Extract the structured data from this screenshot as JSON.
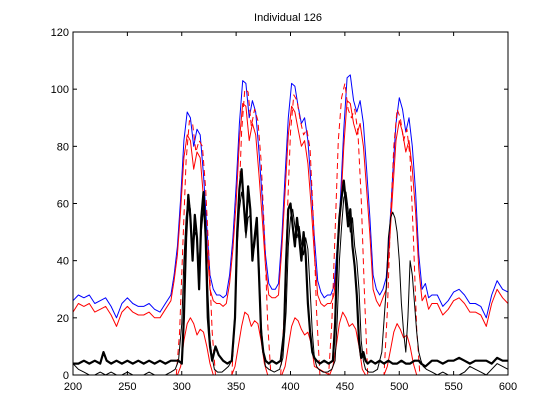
{
  "chart_data": {
    "type": "line",
    "title": "Individual 126",
    "xlabel": "",
    "ylabel": "",
    "xlim": [
      200,
      600
    ],
    "ylim": [
      0,
      120
    ],
    "xticks": [
      200,
      250,
      300,
      350,
      400,
      450,
      500,
      550,
      600
    ],
    "yticks": [
      0,
      20,
      40,
      60,
      80,
      100,
      120
    ],
    "grid": false,
    "legend": "none",
    "series": [
      {
        "color": "#0000ff",
        "style": "solid",
        "width": "thin",
        "x": [
          200,
          205,
          210,
          215,
          220,
          225,
          230,
          235,
          240,
          245,
          250,
          255,
          260,
          265,
          270,
          275,
          280,
          285,
          290,
          293,
          296,
          299,
          302,
          305,
          308,
          311,
          314,
          317,
          320,
          323,
          326,
          329,
          332,
          335,
          338,
          341,
          344,
          347,
          350,
          353,
          356,
          359,
          362,
          365,
          368,
          371,
          374,
          377,
          380,
          383,
          386,
          389,
          392,
          395,
          398,
          401,
          404,
          407,
          410,
          413,
          416,
          419,
          422,
          425,
          428,
          431,
          434,
          437,
          440,
          443,
          446,
          449,
          452,
          455,
          458,
          461,
          464,
          467,
          470,
          473,
          476,
          479,
          482,
          485,
          488,
          491,
          494,
          497,
          500,
          503,
          506,
          509,
          512,
          515,
          518,
          521,
          524,
          527,
          530,
          535,
          540,
          545,
          550,
          555,
          560,
          565,
          570,
          575,
          580,
          585,
          590,
          595,
          600
        ],
        "y": [
          26,
          28,
          27,
          28,
          25,
          26,
          27,
          24,
          20,
          25,
          27,
          25,
          24,
          24,
          25,
          23,
          22,
          25,
          28,
          35,
          45,
          62,
          82,
          92,
          90,
          80,
          86,
          84,
          70,
          52,
          35,
          30,
          28,
          28,
          27,
          28,
          35,
          48,
          66,
          88,
          103,
          102,
          90,
          96,
          92,
          78,
          62,
          42,
          32,
          30,
          30,
          32,
          48,
          70,
          90,
          102,
          101,
          94,
          88,
          90,
          82,
          66,
          48,
          33,
          29,
          27,
          28,
          28,
          31,
          45,
          62,
          86,
          104,
          105,
          96,
          92,
          96,
          88,
          72,
          55,
          35,
          30,
          28,
          30,
          34,
          50,
          70,
          88,
          97,
          93,
          85,
          90,
          80,
          64,
          42,
          30,
          32,
          27,
          28,
          28,
          24,
          26,
          29,
          30,
          28,
          25,
          25,
          24,
          20,
          28,
          33,
          30,
          29
        ]
      },
      {
        "color": "#ff0000",
        "style": "solid",
        "width": "thin",
        "x": [
          200,
          205,
          210,
          215,
          220,
          225,
          230,
          235,
          240,
          245,
          250,
          255,
          260,
          265,
          270,
          275,
          280,
          285,
          290,
          293,
          296,
          299,
          302,
          305,
          308,
          311,
          314,
          317,
          320,
          323,
          326,
          329,
          332,
          335,
          338,
          341,
          344,
          347,
          350,
          353,
          356,
          359,
          362,
          365,
          368,
          371,
          374,
          377,
          380,
          383,
          386,
          389,
          392,
          395,
          398,
          401,
          404,
          407,
          410,
          413,
          416,
          419,
          422,
          425,
          428,
          431,
          434,
          437,
          440,
          443,
          446,
          449,
          452,
          455,
          458,
          461,
          464,
          467,
          470,
          473,
          476,
          479,
          482,
          485,
          488,
          491,
          494,
          497,
          500,
          503,
          506,
          509,
          512,
          515,
          518,
          521,
          524,
          527,
          530,
          535,
          540,
          545,
          550,
          555,
          560,
          565,
          570,
          575,
          580,
          585,
          590,
          595,
          600
        ],
        "y": [
          22,
          25,
          24,
          25,
          22,
          23,
          24,
          21,
          17,
          22,
          24,
          22,
          21,
          21,
          22,
          20,
          20,
          23,
          26,
          33,
          42,
          58,
          76,
          84,
          82,
          72,
          78,
          76,
          62,
          46,
          30,
          26,
          25,
          25,
          24,
          25,
          32,
          44,
          60,
          82,
          95,
          94,
          82,
          88,
          84,
          70,
          55,
          38,
          28,
          27,
          27,
          28,
          44,
          64,
          84,
          94,
          92,
          86,
          80,
          82,
          74,
          59,
          42,
          28,
          25,
          24,
          25,
          25,
          28,
          41,
          57,
          80,
          96,
          95,
          88,
          84,
          88,
          80,
          65,
          49,
          30,
          26,
          24,
          27,
          30,
          46,
          64,
          82,
          89,
          85,
          78,
          82,
          72,
          57,
          37,
          26,
          28,
          23,
          25,
          25,
          21,
          23,
          26,
          27,
          25,
          22,
          22,
          21,
          17,
          25,
          30,
          27,
          25
        ]
      },
      {
        "color": "#ff0000",
        "style": "dashed",
        "width": "thin",
        "x": [
          295,
          298,
          301,
          304,
          307,
          310,
          313,
          316,
          319,
          322,
          325,
          328,
          331,
          346,
          349,
          352,
          355,
          358,
          361,
          364,
          367,
          370,
          373,
          376,
          379,
          382,
          391,
          394,
          397,
          400,
          403,
          406,
          409,
          412,
          415,
          418,
          421,
          424,
          427,
          435,
          438,
          441,
          444,
          447,
          450,
          453,
          456,
          459,
          462,
          465,
          468,
          471,
          474,
          477,
          480,
          486,
          489,
          492,
          495,
          498,
          501,
          504,
          507,
          510,
          513,
          516,
          519,
          522,
          525
        ],
        "y": [
          0,
          15,
          45,
          75,
          89,
          88,
          78,
          82,
          80,
          65,
          42,
          15,
          0,
          0,
          20,
          55,
          85,
          100,
          99,
          87,
          93,
          89,
          75,
          50,
          18,
          0,
          0,
          20,
          55,
          85,
          98,
          96,
          89,
          84,
          86,
          79,
          55,
          22,
          0,
          0,
          18,
          50,
          82,
          97,
          102,
          93,
          90,
          93,
          85,
          62,
          28,
          0,
          0,
          0,
          0,
          0,
          22,
          55,
          80,
          93,
          90,
          82,
          86,
          76,
          48,
          16,
          0,
          0,
          0
        ]
      },
      {
        "color": "#ff0000",
        "style": "solid",
        "width": "thin",
        "x": [
          296,
          299,
          302,
          305,
          308,
          311,
          314,
          317,
          320,
          323,
          326,
          329,
          332,
          346,
          349,
          352,
          355,
          358,
          361,
          364,
          367,
          370,
          373,
          376,
          379,
          392,
          395,
          398,
          401,
          404,
          407,
          410,
          413,
          416,
          419,
          422,
          436,
          439,
          442,
          445,
          448,
          451,
          454,
          457,
          460,
          463,
          466,
          469,
          472,
          486,
          489,
          492,
          495,
          498,
          501,
          504,
          507,
          510,
          513,
          516,
          519
        ],
        "y": [
          0,
          3,
          12,
          18,
          20,
          18,
          14,
          16,
          15,
          10,
          4,
          0,
          0,
          0,
          3,
          10,
          17,
          22,
          21,
          17,
          19,
          18,
          12,
          4,
          0,
          0,
          3,
          10,
          17,
          20,
          19,
          16,
          14,
          15,
          11,
          3,
          0,
          3,
          10,
          18,
          22,
          20,
          17,
          18,
          16,
          10,
          2,
          0,
          0,
          0,
          3,
          9,
          15,
          18,
          16,
          13,
          14,
          10,
          4,
          0,
          0
        ]
      },
      {
        "color": "#000000",
        "style": "solid",
        "width": "thick",
        "x": [
          200,
          205,
          210,
          215,
          220,
          225,
          228,
          231,
          235,
          240,
          245,
          250,
          255,
          260,
          265,
          270,
          275,
          280,
          285,
          290,
          294,
          297,
          300,
          302,
          304,
          306,
          308,
          310,
          312,
          314,
          316,
          318,
          320,
          322,
          324,
          326,
          328,
          331,
          334,
          338,
          342,
          346,
          349,
          351,
          353,
          355,
          357,
          359,
          361,
          363,
          365,
          367,
          369,
          371,
          373,
          375,
          377,
          380,
          383,
          387,
          391,
          394,
          396,
          398,
          400,
          402,
          404,
          406,
          408,
          410,
          412,
          414,
          416,
          418,
          420,
          422,
          424,
          427,
          431,
          435,
          439,
          441,
          443,
          445,
          447,
          449,
          451,
          453,
          455,
          457,
          459,
          461,
          463,
          465,
          467,
          469,
          471,
          474,
          478,
          482,
          486,
          490,
          494,
          498,
          502,
          506,
          510,
          514,
          518,
          520,
          524,
          530,
          535,
          540,
          545,
          550,
          555,
          560,
          565,
          570,
          575,
          580,
          585,
          590,
          595,
          600
        ],
        "y": [
          4,
          4,
          5,
          4,
          5,
          4,
          8,
          5,
          4,
          5,
          4,
          5,
          4,
          5,
          4,
          5,
          4,
          5,
          4,
          5,
          5,
          5,
          4,
          20,
          48,
          63,
          55,
          40,
          56,
          48,
          30,
          55,
          64,
          48,
          20,
          10,
          5,
          10,
          7,
          5,
          4,
          5,
          20,
          50,
          65,
          72,
          60,
          50,
          66,
          58,
          40,
          48,
          55,
          35,
          15,
          8,
          5,
          4,
          5,
          4,
          5,
          15,
          40,
          58,
          60,
          52,
          45,
          55,
          48,
          40,
          50,
          42,
          25,
          15,
          8,
          6,
          5,
          4,
          5,
          4,
          5,
          18,
          42,
          55,
          62,
          68,
          60,
          52,
          58,
          45,
          38,
          28,
          12,
          6,
          8,
          5,
          4,
          5,
          4,
          5,
          4,
          5,
          4,
          4,
          5,
          4,
          4,
          5,
          5,
          4,
          3,
          5,
          5,
          4,
          5,
          5,
          6,
          5,
          4,
          5,
          5,
          5,
          4,
          6,
          5,
          5
        ]
      },
      {
        "color": "#000000",
        "style": "solid",
        "width": "thin",
        "x": [
          200,
          205,
          210,
          215,
          220,
          225,
          230,
          235,
          240,
          245,
          250,
          255,
          260,
          265,
          270,
          275,
          280,
          285,
          290,
          294,
          297,
          300,
          302,
          304,
          306,
          308,
          310,
          312,
          314,
          316,
          318,
          320,
          322,
          324,
          326,
          328,
          330,
          333,
          337,
          340,
          343,
          346,
          349,
          351,
          353,
          355,
          357,
          359,
          361,
          363,
          365,
          367,
          369,
          371,
          373,
          375,
          377,
          380,
          385,
          390,
          393,
          396,
          398,
          400,
          402,
          404,
          406,
          408,
          410,
          412,
          414,
          416,
          418,
          420,
          422,
          424,
          426,
          430,
          434,
          438,
          441,
          443,
          445,
          447,
          449,
          451,
          453,
          455,
          457,
          459,
          461,
          463,
          465,
          467,
          469,
          472,
          476,
          480,
          484,
          488,
          490,
          492,
          494,
          496,
          498,
          500,
          502,
          504,
          506,
          508,
          510,
          512,
          514,
          516,
          518,
          520,
          522,
          525,
          530,
          535,
          540,
          545,
          550,
          555,
          560,
          565,
          570,
          575,
          580,
          585,
          590,
          595,
          600
        ],
        "y": [
          4,
          2,
          1,
          0,
          0,
          1,
          0,
          1,
          0,
          0,
          1,
          0,
          0,
          0,
          1,
          0,
          0,
          0,
          1,
          2,
          5,
          18,
          40,
          55,
          62,
          58,
          42,
          50,
          48,
          38,
          50,
          58,
          52,
          30,
          12,
          6,
          2,
          1,
          1,
          2,
          3,
          5,
          22,
          45,
          58,
          64,
          60,
          48,
          55,
          56,
          42,
          45,
          52,
          38,
          18,
          8,
          3,
          2,
          1,
          2,
          6,
          22,
          45,
          55,
          58,
          52,
          48,
          52,
          46,
          42,
          48,
          44,
          30,
          15,
          6,
          3,
          2,
          1,
          1,
          2,
          5,
          20,
          40,
          52,
          62,
          64,
          58,
          50,
          55,
          45,
          40,
          30,
          12,
          5,
          2,
          1,
          1,
          2,
          8,
          30,
          48,
          55,
          57,
          55,
          50,
          40,
          25,
          15,
          8,
          20,
          40,
          35,
          25,
          15,
          8,
          5,
          3,
          2,
          1,
          0,
          1,
          0,
          0,
          0,
          1,
          3,
          2,
          1,
          0,
          2,
          4,
          3,
          2
        ]
      }
    ]
  }
}
